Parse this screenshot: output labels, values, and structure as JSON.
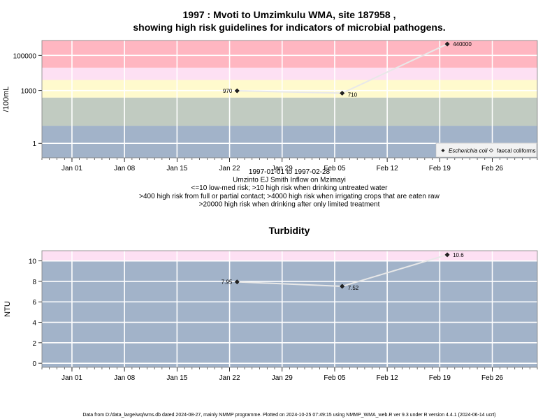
{
  "colors": {
    "red": "#ffb6c1",
    "pink": "#fde0f3",
    "yellow": "#fffacd",
    "sage": "#c1cbc1",
    "blue": "#a2b3c9",
    "grid": "#ffffff",
    "line": "#e8e8e8"
  },
  "chart_data": [
    {
      "type": "line",
      "title": "1997 : Mvoti to Umzimkulu WMA, site 187958 ,",
      "title2": "showing high risk guidelines for indicators of microbial pathogens.",
      "ylabel": "/100mL",
      "yscale": "log",
      "ylim": [
        0.15,
        700000
      ],
      "xlim": [
        "1996-12-28",
        "1997-03-04"
      ],
      "x_ticks": [
        "Jan 01",
        "Jan 08",
        "Jan 15",
        "Jan 22",
        "Jan 29",
        "Feb 05",
        "Feb 12",
        "Feb 19",
        "Feb 26"
      ],
      "x_tick_dates": [
        "1997-01-01",
        "1997-01-08",
        "1997-01-15",
        "1997-01-22",
        "1997-01-29",
        "1997-02-05",
        "1997-02-12",
        "1997-02-19",
        "1997-02-26"
      ],
      "y_ticks": [
        1,
        1000,
        100000
      ],
      "y_tick_labels": [
        "1",
        "1000",
        "100000"
      ],
      "bands": [
        {
          "from": 0.15,
          "to": 10,
          "color": "#a2b3c9"
        },
        {
          "from": 10,
          "to": 400,
          "color": "#c1cbc1"
        },
        {
          "from": 400,
          "to": 4000,
          "color": "#fffacd"
        },
        {
          "from": 4000,
          "to": 20000,
          "color": "#fde0f3"
        },
        {
          "from": 20000,
          "to": 700000,
          "color": "#ffb6c1"
        }
      ],
      "series": [
        {
          "name": "Escherichia coli",
          "x": [
            "1997-01-23",
            "1997-02-06",
            "1997-02-20"
          ],
          "y": [
            970,
            710,
            440000
          ],
          "labels": [
            "970",
            "710",
            "440000"
          ]
        }
      ],
      "legend_position": "bottom-right",
      "legend": [
        "Escherichia coli",
        "faecal coliforms"
      ],
      "sub_lines": [
        "1997-01-01 to 1997-02-28",
        "Umzinto EJ Smith Inflow on Mzimayi",
        "<=10 low-med risk; >10 high risk when drinking untreated water",
        ">400 high risk from full or partial contact; >4000 high risk when irrigating crops that are eaten raw",
        ">20000 high risk when drinking after only limited treatment"
      ]
    },
    {
      "type": "line",
      "title": "Turbidity",
      "ylabel": "NTU",
      "yscale": "linear",
      "ylim": [
        -0.4,
        11
      ],
      "xlim": [
        "1996-12-28",
        "1997-03-04"
      ],
      "x_ticks": [
        "Jan 01",
        "Jan 08",
        "Jan 15",
        "Jan 22",
        "Jan 29",
        "Feb 05",
        "Feb 12",
        "Feb 19",
        "Feb 26"
      ],
      "x_tick_dates": [
        "1997-01-01",
        "1997-01-08",
        "1997-01-15",
        "1997-01-22",
        "1997-01-29",
        "1997-02-05",
        "1997-02-12",
        "1997-02-19",
        "1997-02-26"
      ],
      "y_ticks": [
        0,
        2,
        4,
        6,
        8,
        10
      ],
      "y_tick_labels": [
        "0",
        "2",
        "4",
        "6",
        "8",
        "10"
      ],
      "bands": [
        {
          "from": -0.4,
          "to": 10,
          "color": "#a2b3c9"
        },
        {
          "from": 10,
          "to": 11,
          "color": "#fde0f3"
        }
      ],
      "series": [
        {
          "x": [
            "1997-01-23",
            "1997-02-06",
            "1997-02-20"
          ],
          "y": [
            7.95,
            7.52,
            10.6
          ],
          "labels": [
            "7.95",
            "7.52",
            "10.6"
          ]
        }
      ]
    }
  ],
  "footer": "Data from D:/data_large/wq/wms.db dated 2024-08-27, mainly NMMP programme. Plotted on 2024-10-25 07:49:15 using NMMP_WMA_web.R ver 9.3 under R version 4.4.1 (2024-06-14 ucrt)"
}
